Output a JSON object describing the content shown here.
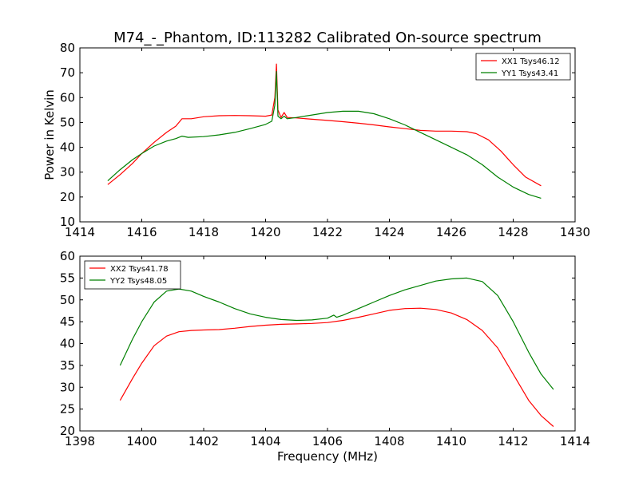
{
  "figure": {
    "title": "M74_-_Phantom, ID:113282 Calibrated On-source spectrum",
    "xlabel": "Frequency (MHz)",
    "ylabel": "Power in Kelvin"
  },
  "chart_data": [
    {
      "type": "line",
      "title": "M74_-_Phantom, ID:113282 Calibrated On-source spectrum",
      "xlabel": "",
      "ylabel": "Power in Kelvin",
      "xlim": [
        1414,
        1430
      ],
      "ylim": [
        10,
        80
      ],
      "xticks": [
        "1414",
        "1416",
        "1418",
        "1420",
        "1422",
        "1424",
        "1426",
        "1428",
        "1430"
      ],
      "yticks": [
        "10",
        "20",
        "30",
        "40",
        "50",
        "60",
        "70",
        "80"
      ],
      "grid": false,
      "legend_position": "top-right",
      "series": [
        {
          "name": "XX1 Tsys46.12",
          "color": "#ff0000",
          "x": [
            1414.9,
            1415.3,
            1415.7,
            1416.0,
            1416.4,
            1416.8,
            1417.1,
            1417.3,
            1417.6,
            1418.0,
            1418.5,
            1419.0,
            1419.5,
            1420.0,
            1420.2,
            1420.3,
            1420.35,
            1420.4,
            1420.5,
            1420.6,
            1420.7,
            1421.0,
            1421.5,
            1422.0,
            1422.5,
            1423.0,
            1423.5,
            1424.0,
            1424.5,
            1425.0,
            1425.5,
            1426.0,
            1426.5,
            1426.8,
            1427.2,
            1427.6,
            1428.0,
            1428.4,
            1428.9
          ],
          "y": [
            25,
            29,
            33.5,
            37.5,
            42,
            46,
            48.5,
            51.5,
            51.5,
            52.3,
            52.7,
            52.8,
            52.7,
            52.5,
            53,
            60,
            73.5,
            55,
            52,
            54,
            52,
            51.8,
            51.3,
            50.8,
            50.3,
            49.7,
            49,
            48.2,
            47.5,
            46.8,
            46.5,
            46.5,
            46.3,
            45.5,
            43,
            38.5,
            33,
            28,
            24.5
          ]
        },
        {
          "name": "YY1 Tsys43.41",
          "color": "#008000",
          "x": [
            1414.9,
            1415.3,
            1415.7,
            1416.0,
            1416.4,
            1416.8,
            1417.1,
            1417.3,
            1417.5,
            1418.0,
            1418.5,
            1419.0,
            1419.5,
            1420.0,
            1420.2,
            1420.3,
            1420.35,
            1420.4,
            1420.5,
            1420.6,
            1420.7,
            1421.0,
            1421.5,
            1422.0,
            1422.5,
            1423.0,
            1423.5,
            1424.0,
            1424.5,
            1425.0,
            1425.5,
            1426.0,
            1426.5,
            1427.0,
            1427.5,
            1428.0,
            1428.5,
            1428.9
          ],
          "y": [
            26.5,
            31,
            35,
            37.5,
            40.5,
            42.5,
            43.5,
            44.5,
            44,
            44.3,
            45,
            46,
            47.5,
            49.2,
            50.5,
            57,
            70.5,
            52.5,
            51.5,
            52.5,
            51.5,
            52,
            53,
            54,
            54.5,
            54.5,
            53.5,
            51.5,
            49,
            46,
            43,
            40,
            37,
            33,
            28,
            24,
            21,
            19.5
          ]
        }
      ]
    },
    {
      "type": "line",
      "title": "",
      "xlabel": "Frequency (MHz)",
      "ylabel": "",
      "xlim": [
        1398,
        1414
      ],
      "ylim": [
        20,
        60
      ],
      "xticks": [
        "1398",
        "1400",
        "1402",
        "1404",
        "1406",
        "1408",
        "1410",
        "1412",
        "1414"
      ],
      "yticks": [
        "20",
        "25",
        "30",
        "35",
        "40",
        "45",
        "50",
        "55",
        "60"
      ],
      "grid": false,
      "legend_position": "top-left",
      "series": [
        {
          "name": "XX2 Tsys41.78",
          "color": "#ff0000",
          "x": [
            1399.3,
            1399.7,
            1400.0,
            1400.4,
            1400.8,
            1401.2,
            1401.6,
            1402.0,
            1402.5,
            1403.0,
            1403.5,
            1404.0,
            1404.5,
            1405.0,
            1405.5,
            1406.0,
            1406.5,
            1407.0,
            1407.5,
            1408.0,
            1408.5,
            1409.0,
            1409.5,
            1410.0,
            1410.5,
            1411.0,
            1411.5,
            1412.0,
            1412.5,
            1412.9,
            1413.3
          ],
          "y": [
            27,
            32,
            35.5,
            39.5,
            41.7,
            42.7,
            43,
            43.1,
            43.2,
            43.5,
            43.9,
            44.2,
            44.4,
            44.5,
            44.6,
            44.8,
            45.3,
            46,
            46.8,
            47.6,
            48,
            48.1,
            47.8,
            47,
            45.5,
            43,
            39,
            33,
            27,
            23.5,
            21
          ]
        },
        {
          "name": "YY2 Tsys48.05",
          "color": "#008000",
          "x": [
            1399.3,
            1399.7,
            1400.0,
            1400.4,
            1400.8,
            1401.2,
            1401.6,
            1402.0,
            1402.5,
            1403.0,
            1403.5,
            1404.0,
            1404.5,
            1405.0,
            1405.5,
            1406.0,
            1406.2,
            1406.3,
            1406.5,
            1407.0,
            1407.5,
            1408.0,
            1408.5,
            1409.0,
            1409.5,
            1410.0,
            1410.5,
            1411.0,
            1411.5,
            1412.0,
            1412.5,
            1412.9,
            1413.3
          ],
          "y": [
            35,
            41,
            45,
            49.5,
            52,
            52.5,
            52,
            50.8,
            49.5,
            48,
            46.8,
            46,
            45.5,
            45.3,
            45.4,
            45.8,
            46.5,
            46,
            46.5,
            48,
            49.5,
            51,
            52.3,
            53.3,
            54.3,
            54.8,
            55,
            54.2,
            51,
            45,
            38,
            33,
            29.5
          ]
        }
      ]
    }
  ]
}
